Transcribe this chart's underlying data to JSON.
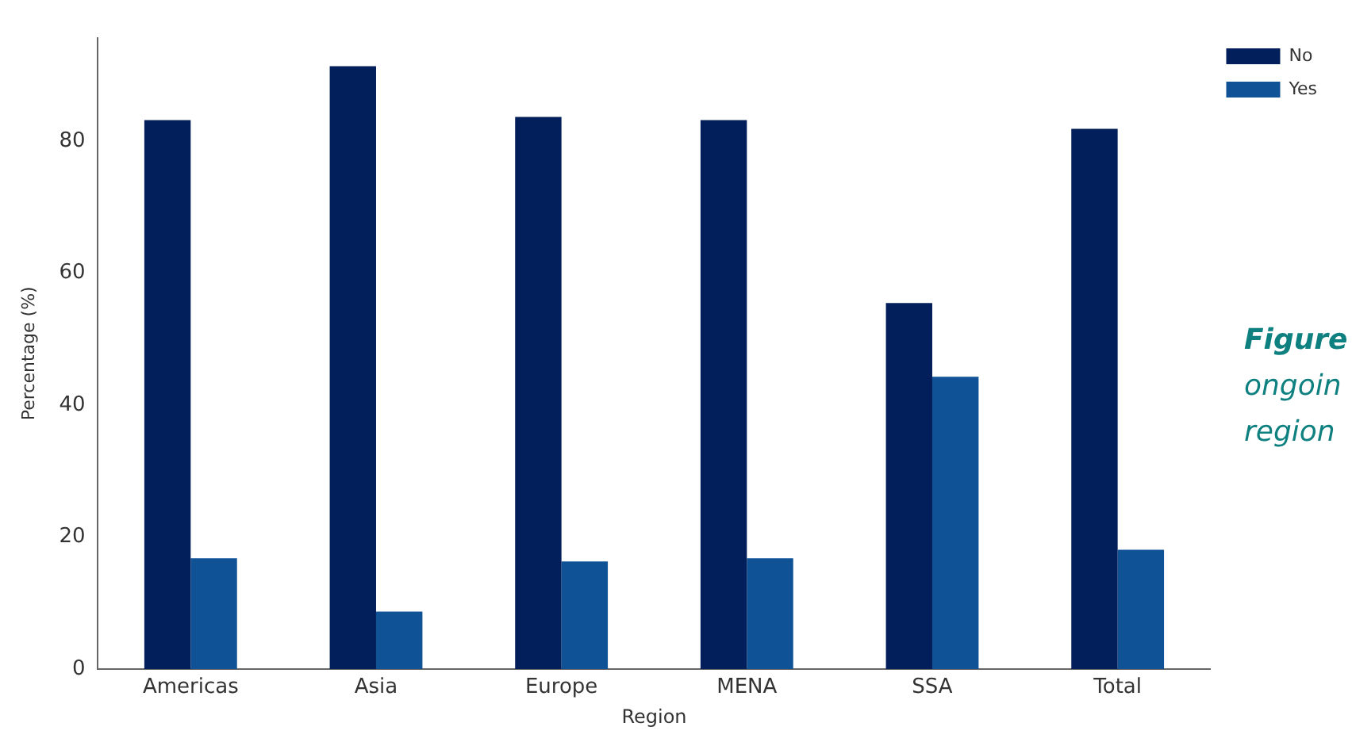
{
  "chart_data": {
    "type": "bar",
    "xlabel": "Region",
    "ylabel": "Percentage (%)",
    "categories": [
      "Americas",
      "Asia",
      "Europe",
      "MENA",
      "SSA",
      "Total"
    ],
    "series": [
      {
        "name": "No",
        "color": "#031f5b",
        "values": [
          83.2,
          91.4,
          83.7,
          83.2,
          55.5,
          81.9
        ]
      },
      {
        "name": "Yes",
        "color": "#0f5296",
        "values": [
          16.8,
          8.7,
          16.3,
          16.8,
          44.3,
          18.1
        ]
      }
    ],
    "ylim": [
      0,
      95.7
    ],
    "yticks": [
      0,
      20,
      40,
      60,
      80
    ],
    "grid": false,
    "legend": "top right",
    "annotations": [
      "Figure",
      "ongoin",
      "region"
    ]
  }
}
